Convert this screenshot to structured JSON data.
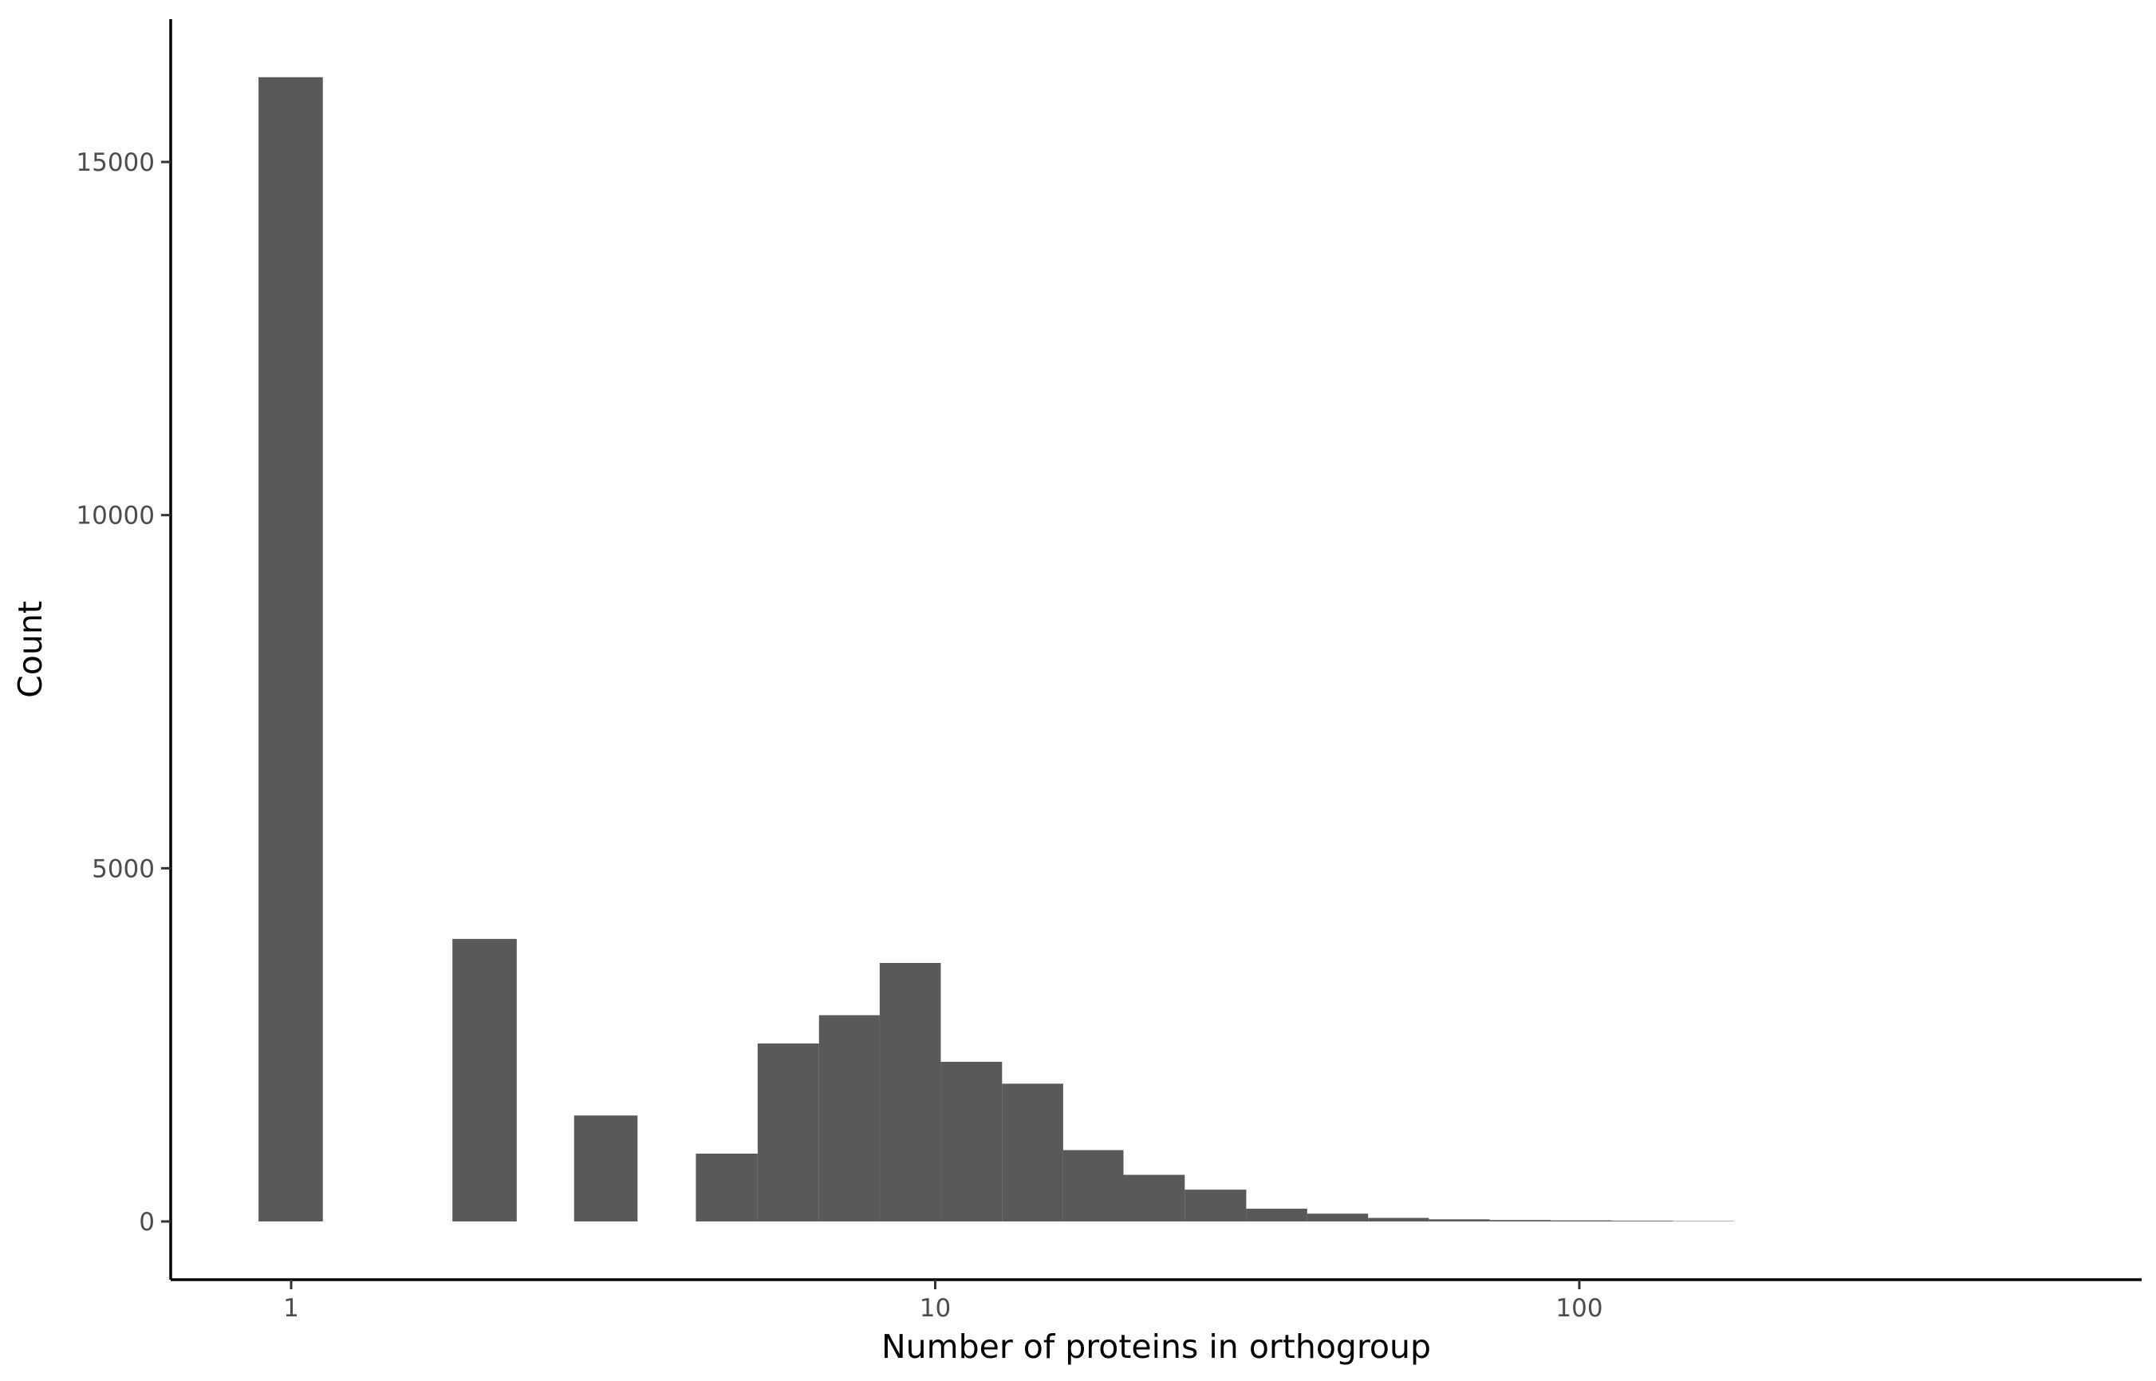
{
  "chart_data": {
    "type": "bar",
    "xlabel": "Number of proteins in orthogroup",
    "ylabel": "Count",
    "x_scale": "log10",
    "x_ticks": [
      1,
      10,
      100
    ],
    "x_tick_labels": [
      "1",
      "10",
      "100"
    ],
    "y_ticks": [
      0,
      5000,
      10000,
      15000
    ],
    "y_tick_labels": [
      "0",
      "5000",
      "10000",
      "15000"
    ],
    "xlim": [
      0.5,
      800
    ],
    "ylim": [
      -800,
      17000
    ],
    "grid": false,
    "bar_color": "#595959",
    "bins": [
      {
        "x_min": 0.89,
        "x_max": 1.12,
        "count": 16200
      },
      {
        "x_min": 1.78,
        "x_max": 2.24,
        "count": 4000
      },
      {
        "x_min": 2.75,
        "x_max": 3.45,
        "count": 1500
      },
      {
        "x_min": 4.25,
        "x_max": 5.3,
        "count": 960
      },
      {
        "x_min": 5.3,
        "x_max": 6.6,
        "count": 2520
      },
      {
        "x_min": 6.6,
        "x_max": 8.2,
        "count": 2920
      },
      {
        "x_min": 8.2,
        "x_max": 10.2,
        "count": 3660
      },
      {
        "x_min": 10.2,
        "x_max": 12.7,
        "count": 2260
      },
      {
        "x_min": 12.7,
        "x_max": 15.8,
        "count": 1950
      },
      {
        "x_min": 15.8,
        "x_max": 19.6,
        "count": 1010
      },
      {
        "x_min": 19.6,
        "x_max": 24.4,
        "count": 660
      },
      {
        "x_min": 24.4,
        "x_max": 30.4,
        "count": 450
      },
      {
        "x_min": 30.4,
        "x_max": 37.8,
        "count": 180
      },
      {
        "x_min": 37.8,
        "x_max": 47.0,
        "count": 110
      },
      {
        "x_min": 47.0,
        "x_max": 58.4,
        "count": 50
      },
      {
        "x_min": 58.4,
        "x_max": 72.6,
        "count": 30
      },
      {
        "x_min": 72.6,
        "x_max": 90.3,
        "count": 20
      },
      {
        "x_min": 90.3,
        "x_max": 112.3,
        "count": 15
      },
      {
        "x_min": 112.3,
        "x_max": 139.6,
        "count": 10
      },
      {
        "x_min": 139.6,
        "x_max": 173.6,
        "count": 5
      }
    ]
  }
}
